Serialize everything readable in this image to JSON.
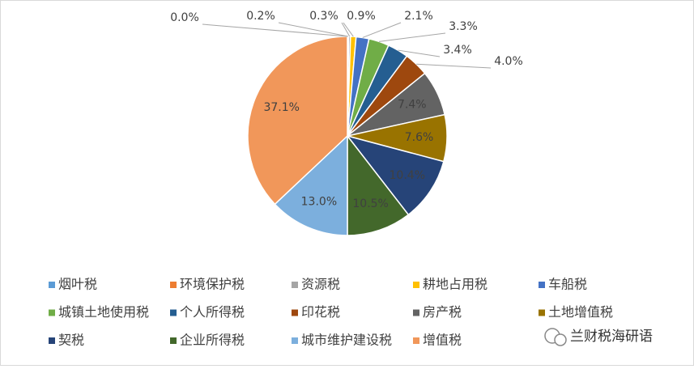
{
  "chart_data": {
    "type": "pie",
    "categories": [
      "烟叶税",
      "环境保护税",
      "资源税",
      "耕地占用税",
      "车船税",
      "城镇土地使用税",
      "个人所得税",
      "印花税",
      "房产税",
      "土地增值税",
      "契税",
      "企业所得税",
      "城市维护建设税",
      "增值税"
    ],
    "values": [
      0.0,
      0.2,
      0.3,
      0.9,
      2.1,
      3.3,
      3.4,
      4.0,
      7.4,
      7.6,
      10.4,
      10.5,
      13.0,
      37.1
    ],
    "value_labels": [
      "0.0%",
      "0.2%",
      "0.3%",
      "0.9%",
      "2.1%",
      "3.3%",
      "3.4%",
      "4.0%",
      "7.4%",
      "7.6%",
      "10.4%",
      "10.5%",
      "13.0%",
      "37.1%"
    ],
    "colors": [
      "#5b9bd5",
      "#ed7d31",
      "#a5a5a5",
      "#ffc000",
      "#4472c4",
      "#70ad47",
      "#255e91",
      "#9e480e",
      "#636363",
      "#997300",
      "#264478",
      "#43682b",
      "#7cafdd",
      "#f1975a"
    ],
    "legend": "bottom"
  },
  "watermark": "兰财税海研语"
}
